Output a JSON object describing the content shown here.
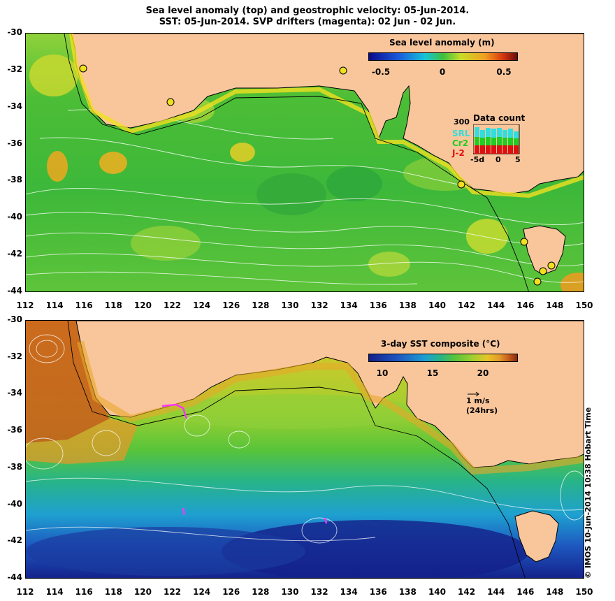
{
  "title_line1": "Sea level anomaly (top) and geostrophic velocity: 05-Jun-2014.",
  "title_line2": "SST: 05-Jun-2014. SVP drifters (magenta): 02 Jun - 02 Jun.",
  "axes": {
    "lat_labels": [
      "-30",
      "-32",
      "-34",
      "-36",
      "-38",
      "-40",
      "-42",
      "-44"
    ],
    "lon_labels": [
      "112",
      "114",
      "116",
      "118",
      "120",
      "122",
      "124",
      "126",
      "128",
      "130",
      "132",
      "134",
      "136",
      "138",
      "140",
      "142",
      "144",
      "146",
      "148",
      "150"
    ],
    "lat_range": [
      -44,
      -30
    ],
    "lon_range": [
      112,
      150
    ]
  },
  "top_panel": {
    "colorbar_title": "Sea level anomaly (m)",
    "colorbar_ticks": [
      "-0.5",
      "0",
      "0.5"
    ],
    "data_count": {
      "title": "Data count",
      "ymax_label": "300",
      "series": [
        "SRL",
        "Cr2",
        "J-2"
      ],
      "series_colors": [
        "#33dddd",
        "#22cc22",
        "#dd1111"
      ],
      "xticks": [
        "-5d",
        "0",
        "5"
      ]
    }
  },
  "bottom_panel": {
    "colorbar_title": "3-day SST composite (°C)",
    "colorbar_ticks": [
      "10",
      "15",
      "20"
    ],
    "scale_arrow_label": "1 m/s",
    "scale_arrow_sub": "(24hrs)"
  },
  "credit": "© IMOS 10-Jun-2014 10:38 Hobart Time",
  "colors": {
    "land": "#f9c69c",
    "ocean_green": "#44bb33",
    "sst_warm": "#c8601c",
    "sst_cold": "#1a3aa0"
  }
}
